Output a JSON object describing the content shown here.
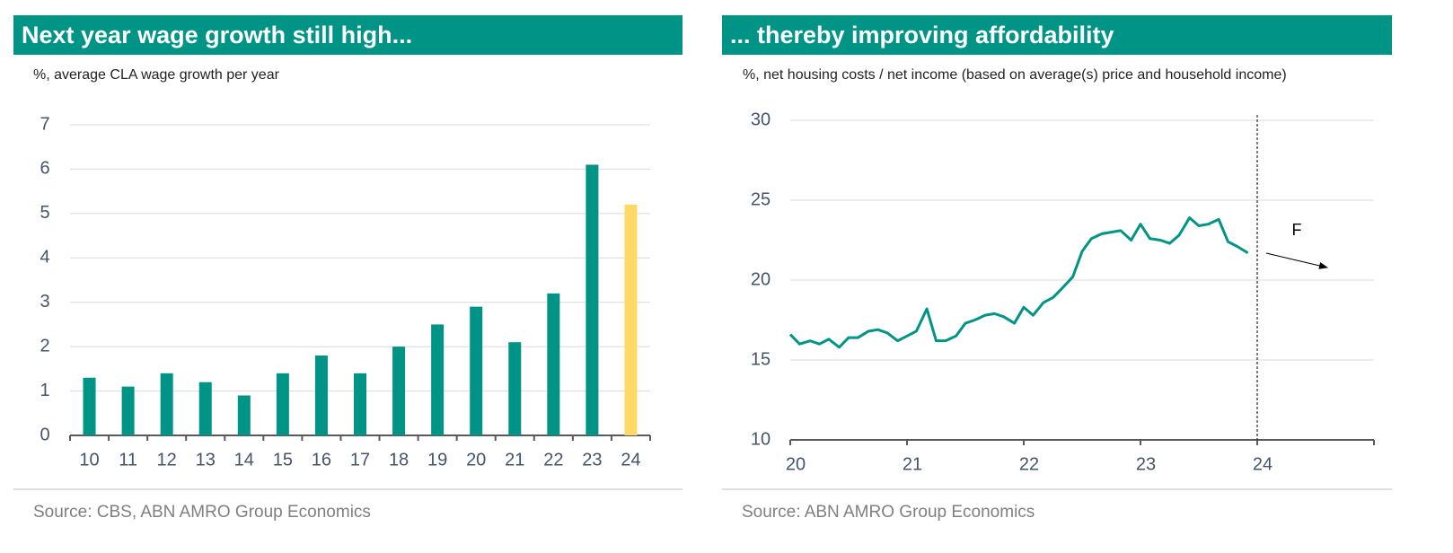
{
  "chart_data": [
    {
      "type": "bar",
      "title": "Next year wage growth still high...",
      "subtitle": "%, average CLA wage growth per year",
      "source": "Source: CBS, ABN AMRO Group Economics",
      "categories": [
        "10",
        "11",
        "12",
        "13",
        "14",
        "15",
        "16",
        "17",
        "18",
        "19",
        "20",
        "21",
        "22",
        "23",
        "24"
      ],
      "values": [
        1.3,
        1.1,
        1.4,
        1.2,
        0.9,
        1.4,
        1.8,
        1.4,
        2.0,
        2.5,
        2.9,
        2.1,
        3.2,
        6.1,
        5.2
      ],
      "colors": [
        "#009486",
        "#009486",
        "#009486",
        "#009486",
        "#009486",
        "#009486",
        "#009486",
        "#009486",
        "#009486",
        "#009486",
        "#009486",
        "#009486",
        "#009486",
        "#009486",
        "#ffd966"
      ],
      "ylim": [
        0,
        7
      ],
      "yticks": [
        0,
        1,
        2,
        3,
        4,
        5,
        6,
        7
      ],
      "grid": true
    },
    {
      "type": "line",
      "title": "... thereby improving affordability",
      "subtitle": "%, net housing costs / net income (based on average(s) price and household income)",
      "source": "Source: ABN AMRO Group Economics",
      "x": [
        20.0,
        20.08,
        20.17,
        20.25,
        20.33,
        20.42,
        20.5,
        20.58,
        20.67,
        20.75,
        20.83,
        20.92,
        21.0,
        21.08,
        21.17,
        21.25,
        21.33,
        21.42,
        21.5,
        21.58,
        21.67,
        21.75,
        21.83,
        21.92,
        22.0,
        22.08,
        22.17,
        22.25,
        22.33,
        22.42,
        22.5,
        22.58,
        22.67,
        22.75,
        22.83,
        22.92,
        23.0,
        23.08,
        23.17,
        23.25,
        23.33,
        23.42,
        23.5,
        23.58,
        23.67,
        23.75,
        23.83,
        23.92
      ],
      "series": [
        {
          "color": "#009486",
          "values": [
            16.6,
            16.0,
            16.2,
            16.0,
            16.3,
            15.8,
            16.4,
            16.4,
            16.8,
            16.9,
            16.7,
            16.2,
            16.5,
            16.8,
            18.2,
            16.2,
            16.2,
            16.5,
            17.3,
            17.5,
            17.8,
            17.9,
            17.7,
            17.3,
            18.3,
            17.8,
            18.6,
            18.9,
            19.5,
            20.2,
            21.8,
            22.6,
            22.9,
            23.0,
            23.1,
            22.5,
            23.5,
            22.6,
            22.5,
            22.3,
            22.8,
            23.9,
            23.4,
            23.5,
            23.8,
            22.4,
            22.1,
            21.7
          ]
        }
      ],
      "xlim": [
        20,
        25
      ],
      "xticks": [
        20,
        21,
        22,
        23,
        24
      ],
      "ylim": [
        10,
        30
      ],
      "yticks": [
        10,
        15,
        20,
        25,
        30
      ],
      "grid": true,
      "forecast_x": 24,
      "annotation": "F"
    }
  ]
}
